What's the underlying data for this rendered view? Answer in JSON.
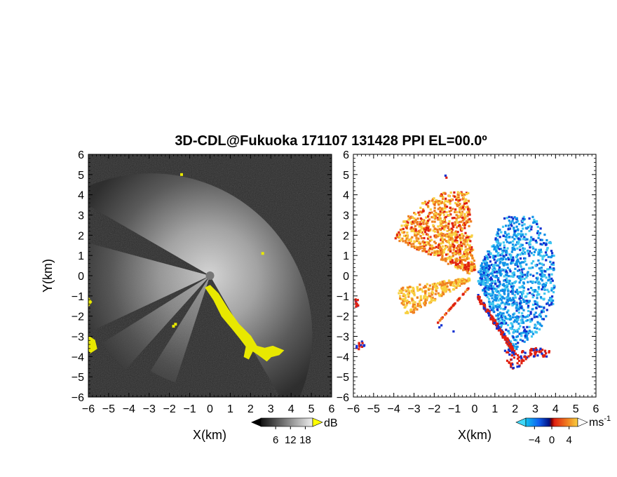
{
  "figure": {
    "title": "3D-CDL@Fukuoka 171107 131428 PPI EL=00.0º"
  },
  "chart_data": [
    {
      "type": "heatmap",
      "panel": "left",
      "quantity": "reflectivity / SNR",
      "xlabel": "X(km)",
      "ylabel": "Y(km)",
      "xlim": [
        -6,
        6
      ],
      "ylim": [
        -6,
        6
      ],
      "xticks": [
        "-6",
        "-5",
        "-4",
        "-3",
        "-2",
        "-1",
        "0",
        "1",
        "2",
        "3",
        "4",
        "5",
        "6"
      ],
      "yticks": [
        "6",
        "5",
        "4",
        "3",
        "2",
        "1",
        "0",
        "-1",
        "-2",
        "-3",
        "-4",
        "-5",
        "-6"
      ],
      "colormap": "grayscale with yellow saturation",
      "colors": {
        "background": "#2a2a2a",
        "hot": "#e8e800"
      },
      "colorbar": {
        "ticks": [
          "6",
          "12",
          "18"
        ],
        "unit": "dB",
        "range": [
          0,
          21
        ]
      }
    },
    {
      "type": "heatmap",
      "panel": "right",
      "quantity": "radial velocity",
      "xlabel": "X(km)",
      "ylabel": "",
      "xlim": [
        -6,
        6
      ],
      "ylim": [
        -6,
        6
      ],
      "xticks": [
        "-6",
        "-5",
        "-4",
        "-3",
        "-2",
        "-1",
        "0",
        "1",
        "2",
        "3",
        "4",
        "5",
        "6"
      ],
      "yticks": [
        "6",
        "5",
        "4",
        "3",
        "2",
        "1",
        "0",
        "-1",
        "-2",
        "-3",
        "-4",
        "-5",
        "-6"
      ],
      "colormap": "blue-white-orange-red diverging",
      "colors": {
        "neg_strong": "#1030d0",
        "neg": "#1090e8",
        "neg_light": "#40c8f0",
        "pos_light": "#f8d040",
        "pos": "#f08020",
        "pos_strong": "#e02010"
      },
      "colorbar": {
        "ticks": [
          "-4",
          "0",
          "4"
        ],
        "unit": "ms",
        "unit_sup": "-1",
        "range": [
          -6,
          6
        ]
      }
    }
  ]
}
